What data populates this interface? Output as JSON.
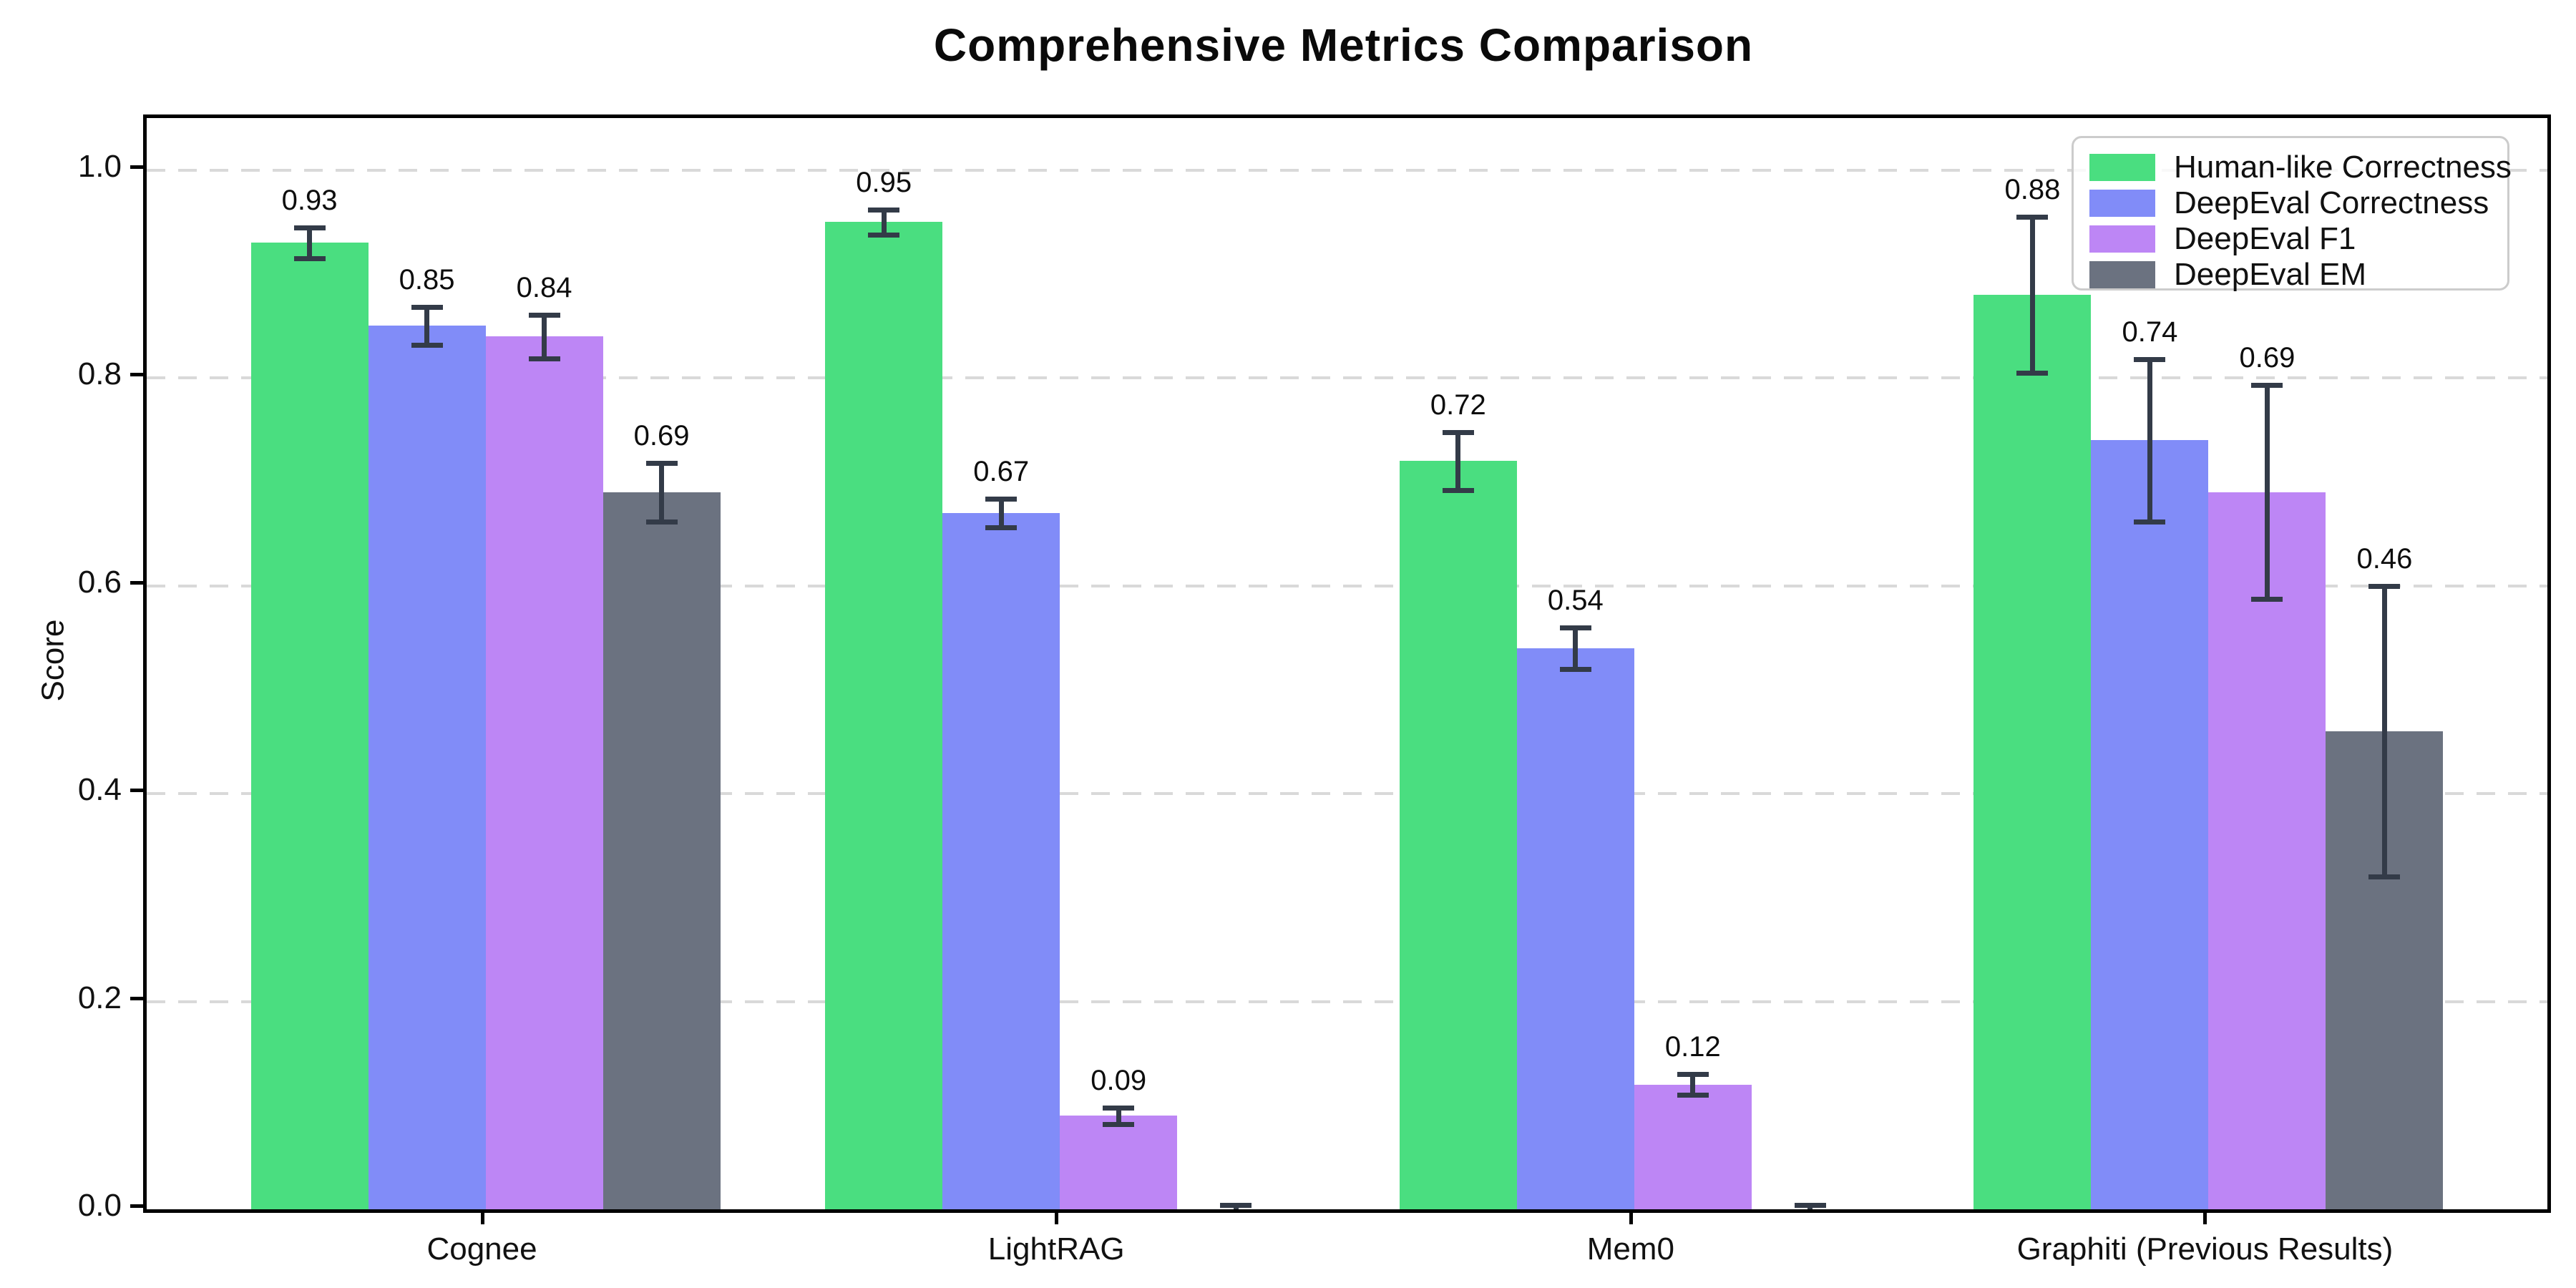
{
  "title": "Comprehensive Metrics Comparison",
  "chart_data": {
    "type": "bar",
    "title": "Comprehensive Metrics Comparison",
    "xlabel": "",
    "ylabel": "Score",
    "categories": [
      "Cognee",
      "LightRAG",
      "Mem0",
      "Graphiti (Previous Results)"
    ],
    "series": [
      {
        "name": "Human-like Correctness",
        "color": "#4ade80",
        "values": [
          0.93,
          0.95,
          0.72,
          0.88
        ],
        "errors": [
          0.015,
          0.012,
          0.028,
          0.075
        ],
        "labels": [
          "0.93",
          "0.95",
          "0.72",
          "0.88"
        ]
      },
      {
        "name": "DeepEval Correctness",
        "color": "#818cf8",
        "values": [
          0.85,
          0.67,
          0.54,
          0.74
        ],
        "errors": [
          0.018,
          0.014,
          0.02,
          0.078
        ],
        "labels": [
          "0.85",
          "0.67",
          "0.54",
          "0.74"
        ]
      },
      {
        "name": "DeepEval F1",
        "color": "#bd86f5",
        "values": [
          0.84,
          0.09,
          0.12,
          0.69
        ],
        "errors": [
          0.021,
          0.008,
          0.01,
          0.103
        ],
        "labels": [
          "0.84",
          "0.09",
          "0.12",
          "0.69"
        ]
      },
      {
        "name": "DeepEval EM",
        "color": "#6b7280",
        "values": [
          0.69,
          0.0,
          0.0,
          0.46
        ],
        "errors": [
          0.028,
          0.004,
          0.004,
          0.14
        ],
        "labels": [
          "0.69",
          "",
          "",
          "0.46"
        ]
      }
    ],
    "ylim": [
      0,
      1.05
    ],
    "yticks": [
      0.0,
      0.2,
      0.4,
      0.6,
      0.8,
      1.0
    ],
    "ytick_labels": [
      "0.0",
      "0.2",
      "0.4",
      "0.6",
      "0.8",
      "1.0"
    ],
    "grid": {
      "axis": "y",
      "style": "dashed",
      "color": "#d9d9d9"
    },
    "legend": {
      "position": "upper right"
    },
    "error_bar_color": "#333b48",
    "axis_color": "#000000",
    "background": "#ffffff"
  }
}
